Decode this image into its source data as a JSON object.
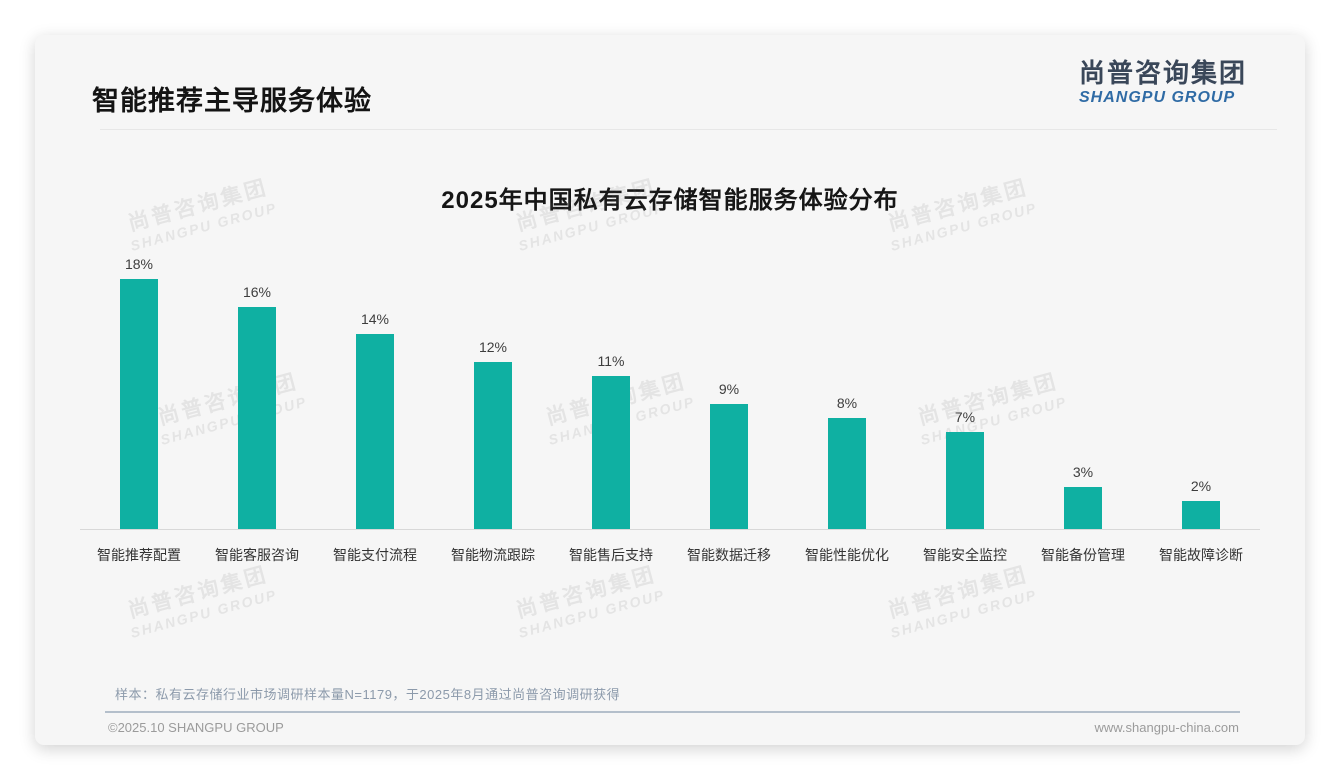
{
  "header": {
    "title": "智能推荐主导服务体验"
  },
  "logo": {
    "cn": "尚普咨询集团",
    "en": "SHANGPU GROUP"
  },
  "chart_data": {
    "type": "bar",
    "title": "2025年中国私有云存储智能服务体验分布",
    "categories": [
      "智能推荐配置",
      "智能客服咨询",
      "智能支付流程",
      "智能物流跟踪",
      "智能售后支持",
      "智能数据迁移",
      "智能性能优化",
      "智能安全监控",
      "智能备份管理",
      "智能故障诊断"
    ],
    "values": [
      18,
      16,
      14,
      12,
      11,
      9,
      8,
      7,
      3,
      2
    ],
    "value_labels": [
      "18%",
      "16%",
      "14%",
      "12%",
      "11%",
      "9%",
      "8%",
      "7%",
      "3%",
      "2%"
    ],
    "unit": "%",
    "bar_color": "#0fb0a2",
    "ylim": [
      0,
      20
    ],
    "grid": false,
    "legend": false,
    "xlabel": "",
    "ylabel": ""
  },
  "watermark": {
    "cn": "尚普咨询集团",
    "en": "SHANGPU GROUP"
  },
  "note": {
    "text": "样本：私有云存储行业市场调研样本量N=1179，于2025年8月通过尚普咨询调研获得"
  },
  "footer": {
    "copyright": "©2025.10 SHANGPU GROUP",
    "website": "www.shangpu-china.com"
  }
}
